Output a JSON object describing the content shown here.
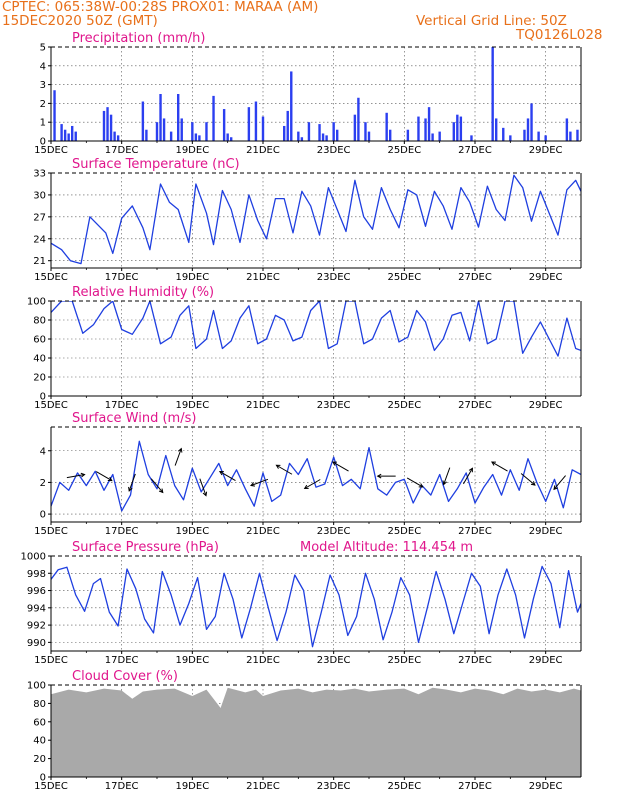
{
  "header": {
    "line1": "CPTEC:   065:38W-00:28S   PROX01: MARAA (AM)",
    "line2": "15DEC2020 50Z (GMT)",
    "grid_note": "Vertical Grid Line: 50Z",
    "run_id": "TQ0126L028",
    "text_color": "#e8701a",
    "title_color": "#e0168c",
    "line_color": "#1f3fe0",
    "bar_color": "#2b3ff0",
    "cloud_color": "#a9a9a9"
  },
  "x_ticks": [
    "15DEC",
    "17DEC",
    "19DEC",
    "21DEC",
    "23DEC",
    "25DEC",
    "27DEC",
    "29DEC"
  ],
  "x_range_days": [
    0,
    15
  ],
  "chart_data": [
    {
      "id": "precip",
      "type": "bar",
      "title": "Precipitation (mm/h)",
      "ylim": [
        0,
        5
      ],
      "yticks": [
        "0",
        "1",
        "2",
        "3",
        "4",
        "5"
      ],
      "x_days": [
        0.1,
        0.3,
        0.4,
        0.5,
        0.6,
        0.7,
        1.5,
        1.6,
        1.7,
        1.8,
        1.9,
        2.6,
        2.7,
        3.0,
        3.1,
        3.2,
        3.4,
        3.6,
        3.7,
        4.0,
        4.1,
        4.2,
        4.4,
        4.6,
        4.9,
        5.0,
        5.1,
        5.6,
        5.8,
        6.0,
        6.6,
        6.7,
        6.8,
        7.0,
        7.1,
        7.3,
        7.6,
        7.7,
        7.8,
        8.0,
        8.1,
        8.6,
        8.7,
        8.9,
        9.0,
        9.5,
        9.6,
        10.1,
        10.4,
        10.6,
        10.7,
        10.8,
        11.0,
        11.4,
        11.5,
        11.6,
        11.9,
        12.5,
        12.6,
        12.8,
        13.0,
        13.4,
        13.5,
        13.6,
        13.8,
        14.0,
        14.6,
        14.7,
        14.9
      ],
      "values": [
        2.7,
        0.9,
        0.6,
        0.4,
        0.8,
        0.5,
        1.6,
        1.8,
        1.4,
        0.5,
        0.3,
        2.1,
        0.6,
        1.0,
        2.5,
        1.2,
        0.5,
        2.5,
        1.2,
        1.0,
        0.4,
        0.3,
        1.0,
        2.4,
        1.7,
        0.4,
        0.2,
        1.8,
        2.1,
        1.3,
        0.8,
        1.6,
        3.7,
        0.5,
        0.2,
        1.0,
        0.9,
        0.4,
        0.3,
        1.0,
        0.6,
        1.4,
        2.3,
        1.0,
        0.5,
        1.5,
        0.6,
        0.6,
        1.3,
        1.2,
        1.8,
        0.4,
        0.5,
        1.0,
        1.4,
        1.3,
        0.3,
        5.0,
        1.2,
        0.7,
        0.3,
        0.6,
        1.2,
        2.0,
        0.5,
        0.3,
        1.2,
        0.5,
        0.6
      ]
    },
    {
      "id": "temp",
      "type": "line",
      "title": "Surface Temperature (nC)",
      "ylim": [
        20,
        33
      ],
      "yticks": [
        "21",
        "24",
        "27",
        "30",
        "33"
      ],
      "x_days": [
        0,
        0.3,
        0.55,
        0.85,
        1.1,
        1.55,
        1.75,
        2.0,
        2.3,
        2.6,
        2.8,
        3.1,
        3.35,
        3.6,
        3.9,
        4.1,
        4.4,
        4.6,
        4.85,
        5.1,
        5.35,
        5.6,
        5.85,
        6.1,
        6.35,
        6.6,
        6.85,
        7.1,
        7.35,
        7.6,
        7.85,
        8.1,
        8.35,
        8.6,
        8.85,
        9.1,
        9.35,
        9.6,
        9.85,
        10.1,
        10.35,
        10.6,
        10.85,
        11.1,
        11.35,
        11.6,
        11.85,
        12.1,
        12.35,
        12.6,
        12.85,
        13.1,
        13.35,
        13.6,
        13.85,
        14.1,
        14.35,
        14.6,
        14.85,
        15
      ],
      "values": [
        23.4,
        22.5,
        21.0,
        20.6,
        27.0,
        24.8,
        22.0,
        26.8,
        28.5,
        25.5,
        22.5,
        31.5,
        29.0,
        28.0,
        23.5,
        31.5,
        27.5,
        23.2,
        30.6,
        28.0,
        23.5,
        30.0,
        26.5,
        24.0,
        29.5,
        29.5,
        24.8,
        30.5,
        28.5,
        24.5,
        31.0,
        28.0,
        25.0,
        32.0,
        27.0,
        25.3,
        31.0,
        28.0,
        25.5,
        30.7,
        30.0,
        25.7,
        30.5,
        28.5,
        25.3,
        31.0,
        29.0,
        25.6,
        31.2,
        28.0,
        26.5,
        32.7,
        31.0,
        26.4,
        30.5,
        27.5,
        24.5,
        30.7,
        32.0,
        30.5
      ]
    },
    {
      "id": "rh",
      "type": "line",
      "title": "Relative Humidity (%)",
      "ylim": [
        0,
        100
      ],
      "yticks": [
        "0",
        "20",
        "40",
        "60",
        "80",
        "100"
      ],
      "x_days": [
        0,
        0.3,
        0.6,
        0.9,
        1.2,
        1.5,
        1.75,
        2.0,
        2.3,
        2.6,
        2.8,
        3.1,
        3.4,
        3.65,
        3.9,
        4.1,
        4.4,
        4.6,
        4.85,
        5.1,
        5.35,
        5.6,
        5.85,
        6.1,
        6.35,
        6.6,
        6.85,
        7.1,
        7.35,
        7.6,
        7.85,
        8.1,
        8.35,
        8.6,
        8.85,
        9.1,
        9.35,
        9.6,
        9.85,
        10.1,
        10.35,
        10.6,
        10.85,
        11.1,
        11.35,
        11.6,
        11.85,
        12.1,
        12.35,
        12.6,
        12.85,
        13.1,
        13.35,
        13.6,
        13.85,
        14.1,
        14.35,
        14.6,
        14.85,
        15
      ],
      "values": [
        88,
        100,
        100,
        66,
        75,
        92,
        100,
        70,
        65,
        82,
        100,
        55,
        62,
        85,
        95,
        50,
        60,
        90,
        50,
        58,
        82,
        95,
        55,
        60,
        85,
        80,
        58,
        62,
        90,
        100,
        50,
        55,
        100,
        100,
        55,
        60,
        82,
        90,
        57,
        62,
        90,
        78,
        48,
        60,
        85,
        88,
        58,
        100,
        55,
        60,
        100,
        100,
        45,
        62,
        78,
        60,
        42,
        82,
        50,
        48
      ]
    },
    {
      "id": "wind",
      "type": "line",
      "title": "Surface Wind (m/s)",
      "ylim": [
        -0.5,
        5.5
      ],
      "yticks": [
        "0",
        "2",
        "4"
      ],
      "x_days": [
        0,
        0.25,
        0.5,
        0.75,
        1.0,
        1.25,
        1.5,
        1.75,
        2.0,
        2.25,
        2.5,
        2.75,
        3.0,
        3.25,
        3.5,
        3.75,
        4.0,
        4.25,
        4.5,
        4.75,
        5.0,
        5.25,
        5.5,
        5.75,
        6.0,
        6.25,
        6.5,
        6.75,
        7.0,
        7.25,
        7.5,
        7.75,
        8.0,
        8.25,
        8.5,
        8.75,
        9.0,
        9.25,
        9.5,
        9.75,
        10.0,
        10.25,
        10.5,
        10.75,
        11.0,
        11.25,
        11.5,
        11.75,
        12.0,
        12.25,
        12.5,
        12.75,
        13.0,
        13.25,
        13.5,
        13.75,
        14.0,
        14.25,
        14.5,
        14.75,
        15.0
      ],
      "values": [
        0.5,
        2.0,
        1.5,
        2.6,
        1.8,
        2.7,
        1.5,
        2.5,
        0.2,
        1.2,
        4.6,
        2.5,
        1.6,
        3.7,
        1.8,
        0.9,
        2.9,
        1.4,
        2.3,
        3.2,
        1.8,
        2.8,
        1.6,
        0.5,
        2.6,
        0.8,
        1.2,
        3.2,
        2.5,
        3.5,
        1.7,
        1.9,
        3.6,
        1.8,
        2.2,
        1.6,
        4.2,
        1.6,
        1.2,
        2.0,
        2.2,
        0.7,
        1.8,
        1.2,
        2.5,
        0.8,
        1.6,
        2.6,
        0.7,
        1.7,
        2.5,
        1.2,
        2.8,
        1.5,
        3.5,
        2.0,
        0.8,
        2.2,
        0.4,
        2.8,
        2.5
      ]
    },
    {
      "id": "pressure",
      "type": "line",
      "title": "Surface Pressure (hPa)",
      "subtitle": "Model Altitude: 114.454 m",
      "ylim": [
        989,
        1000
      ],
      "yticks": [
        "990",
        "992",
        "994",
        "996",
        "998",
        "1000"
      ],
      "x_days": [
        0,
        0.2,
        0.45,
        0.7,
        0.95,
        1.2,
        1.4,
        1.65,
        1.9,
        2.15,
        2.4,
        2.65,
        2.9,
        3.15,
        3.4,
        3.65,
        3.9,
        4.15,
        4.4,
        4.65,
        4.9,
        5.15,
        5.4,
        5.65,
        5.9,
        6.15,
        6.4,
        6.65,
        6.9,
        7.15,
        7.4,
        7.65,
        7.9,
        8.15,
        8.4,
        8.65,
        8.9,
        9.15,
        9.4,
        9.65,
        9.9,
        10.15,
        10.4,
        10.65,
        10.9,
        11.15,
        11.4,
        11.65,
        11.9,
        12.15,
        12.4,
        12.65,
        12.9,
        13.15,
        13.4,
        13.65,
        13.9,
        14.15,
        14.4,
        14.65,
        14.9,
        15
      ],
      "values": [
        997.3,
        998.4,
        998.7,
        995.5,
        993.6,
        996.8,
        997.4,
        993.5,
        991.9,
        998.5,
        996.2,
        992.7,
        991.1,
        998.2,
        995.5,
        992.0,
        994.5,
        997.5,
        991.5,
        993.0,
        998.0,
        995.0,
        990.5,
        994.0,
        998.0,
        994.0,
        990.2,
        993.5,
        997.8,
        996.0,
        989.5,
        993.5,
        997.8,
        995.5,
        990.8,
        993.0,
        998.0,
        995.0,
        990.3,
        993.5,
        997.5,
        995.5,
        990.0,
        994.0,
        998.2,
        995.0,
        991.0,
        994.5,
        998.0,
        996.5,
        991.0,
        995.5,
        998.5,
        995.5,
        990.5,
        995.0,
        998.8,
        996.8,
        991.7,
        998.3,
        993.5,
        994.5
      ]
    },
    {
      "id": "cloud",
      "type": "area",
      "title": "Cloud Cover (%)",
      "ylim": [
        0,
        100
      ],
      "yticks": [
        "0",
        "20",
        "40",
        "60",
        "80",
        "100"
      ],
      "x_days": [
        0,
        0.5,
        1.0,
        1.5,
        2.0,
        2.3,
        2.6,
        3.0,
        3.5,
        4.0,
        4.4,
        4.8,
        5.0,
        5.5,
        5.8,
        6.0,
        6.5,
        7.0,
        7.4,
        7.8,
        8.2,
        8.6,
        9.0,
        9.5,
        10.0,
        10.4,
        10.8,
        11.2,
        11.6,
        12.0,
        12.4,
        12.8,
        13.2,
        13.6,
        14.0,
        14.4,
        14.8,
        15.0
      ],
      "values": [
        90,
        95,
        92,
        96,
        94,
        85,
        93,
        95,
        96,
        88,
        95,
        75,
        97,
        92,
        95,
        88,
        94,
        96,
        92,
        95,
        94,
        96,
        93,
        95,
        96,
        90,
        97,
        95,
        92,
        96,
        94,
        90,
        96,
        93,
        95,
        92,
        96,
        94
      ]
    }
  ],
  "wind_vectors": [
    {
      "x_day": 0.7,
      "speed_ms": 2.4,
      "dir_deg": 80
    },
    {
      "x_day": 1.5,
      "speed_ms": 2.4,
      "dir_deg": 120
    },
    {
      "x_day": 2.3,
      "speed_ms": 2.0,
      "dir_deg": 200
    },
    {
      "x_day": 3.0,
      "speed_ms": 1.8,
      "dir_deg": 140
    },
    {
      "x_day": 3.6,
      "speed_ms": 3.6,
      "dir_deg": 20
    },
    {
      "x_day": 4.3,
      "speed_ms": 1.7,
      "dir_deg": 160
    },
    {
      "x_day": 5.0,
      "speed_ms": 2.4,
      "dir_deg": 300
    },
    {
      "x_day": 5.9,
      "speed_ms": 2.0,
      "dir_deg": 250
    },
    {
      "x_day": 6.6,
      "speed_ms": 2.8,
      "dir_deg": 300
    },
    {
      "x_day": 7.4,
      "speed_ms": 1.9,
      "dir_deg": 240
    },
    {
      "x_day": 8.2,
      "speed_ms": 3.0,
      "dir_deg": 300
    },
    {
      "x_day": 9.5,
      "speed_ms": 2.4,
      "dir_deg": 270
    },
    {
      "x_day": 10.3,
      "speed_ms": 2.0,
      "dir_deg": 120
    },
    {
      "x_day": 11.2,
      "speed_ms": 2.4,
      "dir_deg": 200
    },
    {
      "x_day": 11.8,
      "speed_ms": 2.4,
      "dir_deg": 30
    },
    {
      "x_day": 12.7,
      "speed_ms": 3.0,
      "dir_deg": 300
    },
    {
      "x_day": 13.5,
      "speed_ms": 2.2,
      "dir_deg": 130
    },
    {
      "x_day": 14.4,
      "speed_ms": 2.0,
      "dir_deg": 220
    }
  ]
}
